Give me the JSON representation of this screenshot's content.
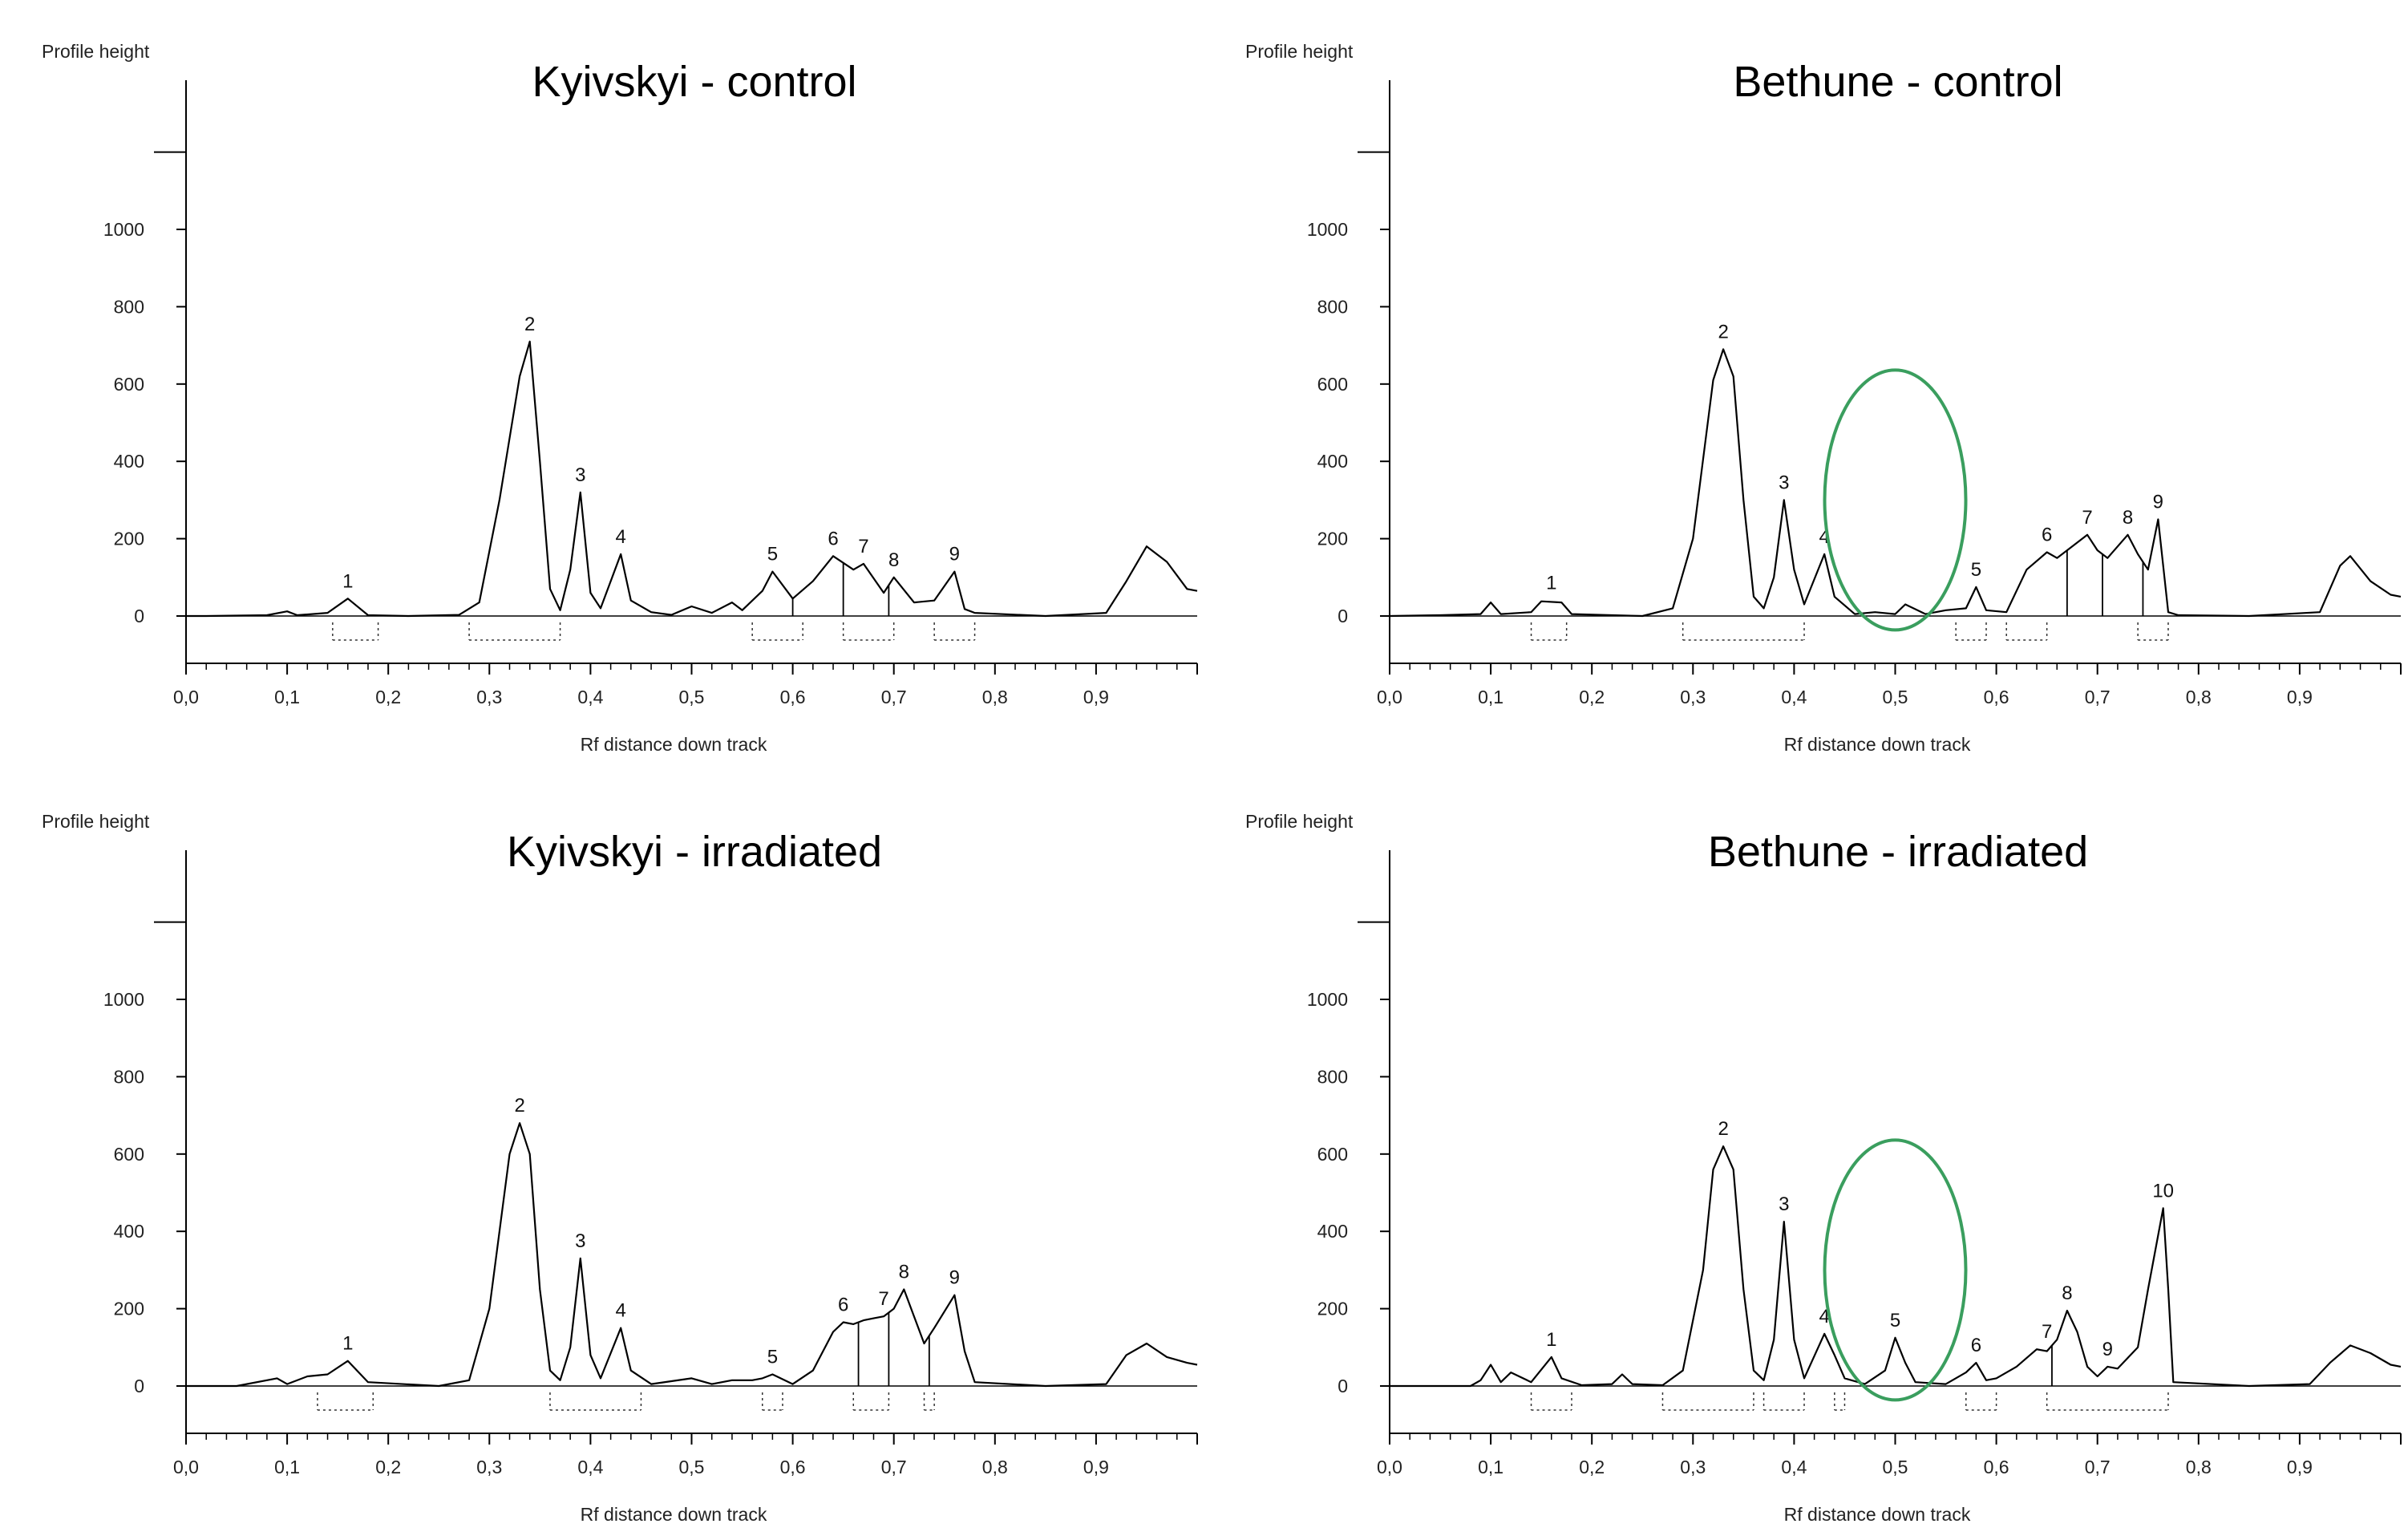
{
  "chart_data": [
    {
      "type": "line",
      "title": "Kyivskyi - control",
      "ylabel": "Profile height",
      "xlabel": "Rf distance down track",
      "ylim": [
        -120,
        1200
      ],
      "xlim": [
        0,
        1
      ],
      "yticks": [
        "0",
        "200",
        "400",
        "600",
        "800",
        "1000"
      ],
      "xticks": [
        "0,0",
        "0,1",
        "0,2",
        "0,3",
        "0,4",
        "0,5",
        "0,6",
        "0,7",
        "0,8",
        "0,9"
      ],
      "peaks": [
        {
          "label": "1",
          "x": 0.16,
          "y": 45
        },
        {
          "label": "2",
          "x": 0.34,
          "y": 710
        },
        {
          "label": "3",
          "x": 0.39,
          "y": 320
        },
        {
          "label": "4",
          "x": 0.43,
          "y": 160
        },
        {
          "label": "5",
          "x": 0.58,
          "y": 115
        },
        {
          "label": "6",
          "x": 0.64,
          "y": 155
        },
        {
          "label": "7",
          "x": 0.67,
          "y": 135
        },
        {
          "label": "8",
          "x": 0.7,
          "y": 100
        },
        {
          "label": "9",
          "x": 0.76,
          "y": 115
        }
      ],
      "profile": [
        [
          0,
          0
        ],
        [
          0.02,
          0
        ],
        [
          0.08,
          2
        ],
        [
          0.1,
          12
        ],
        [
          0.11,
          2
        ],
        [
          0.14,
          8
        ],
        [
          0.16,
          45
        ],
        [
          0.18,
          2
        ],
        [
          0.22,
          0
        ],
        [
          0.27,
          3
        ],
        [
          0.29,
          35
        ],
        [
          0.31,
          300
        ],
        [
          0.33,
          620
        ],
        [
          0.34,
          710
        ],
        [
          0.35,
          400
        ],
        [
          0.36,
          70
        ],
        [
          0.37,
          15
        ],
        [
          0.38,
          120
        ],
        [
          0.39,
          320
        ],
        [
          0.4,
          60
        ],
        [
          0.41,
          20
        ],
        [
          0.43,
          160
        ],
        [
          0.44,
          40
        ],
        [
          0.46,
          10
        ],
        [
          0.48,
          3
        ],
        [
          0.5,
          25
        ],
        [
          0.52,
          8
        ],
        [
          0.54,
          35
        ],
        [
          0.55,
          15
        ],
        [
          0.57,
          65
        ],
        [
          0.58,
          115
        ],
        [
          0.6,
          45
        ],
        [
          0.62,
          90
        ],
        [
          0.64,
          155
        ],
        [
          0.66,
          120
        ],
        [
          0.67,
          135
        ],
        [
          0.69,
          60
        ],
        [
          0.7,
          100
        ],
        [
          0.72,
          35
        ],
        [
          0.74,
          40
        ],
        [
          0.76,
          115
        ],
        [
          0.77,
          18
        ],
        [
          0.78,
          8
        ],
        [
          0.85,
          0
        ],
        [
          0.91,
          8
        ],
        [
          0.93,
          90
        ],
        [
          0.95,
          180
        ],
        [
          0.97,
          140
        ],
        [
          0.99,
          70
        ],
        [
          1.0,
          65
        ]
      ],
      "vlines": [
        0.6,
        0.65,
        0.695
      ],
      "dotted_groups": [
        [
          0.145,
          0.19
        ],
        [
          0.28,
          0.37
        ],
        [
          0.56,
          0.61
        ],
        [
          0.65,
          0.7
        ],
        [
          0.74,
          0.78
        ]
      ]
    },
    {
      "type": "line",
      "title": "Bethune - control",
      "ylabel": "Profile height",
      "xlabel": "Rf distance down track",
      "ylim": [
        -120,
        1200
      ],
      "xlim": [
        0,
        1
      ],
      "yticks": [
        "0",
        "200",
        "400",
        "600",
        "800",
        "1000"
      ],
      "xticks": [
        "0,0",
        "0,1",
        "0,2",
        "0,3",
        "0,4",
        "0,5",
        "0,6",
        "0,7",
        "0,8",
        "0,9"
      ],
      "peaks": [
        {
          "label": "1",
          "x": 0.16,
          "y": 40
        },
        {
          "label": "2",
          "x": 0.33,
          "y": 690
        },
        {
          "label": "3",
          "x": 0.39,
          "y": 300
        },
        {
          "label": "4",
          "x": 0.43,
          "y": 160
        },
        {
          "label": "5",
          "x": 0.58,
          "y": 75
        },
        {
          "label": "6",
          "x": 0.65,
          "y": 165
        },
        {
          "label": "7",
          "x": 0.69,
          "y": 210
        },
        {
          "label": "8",
          "x": 0.73,
          "y": 210
        },
        {
          "label": "9",
          "x": 0.76,
          "y": 250
        }
      ],
      "profile": [
        [
          0,
          0
        ],
        [
          0.05,
          2
        ],
        [
          0.09,
          5
        ],
        [
          0.1,
          35
        ],
        [
          0.11,
          5
        ],
        [
          0.14,
          10
        ],
        [
          0.15,
          38
        ],
        [
          0.17,
          35
        ],
        [
          0.18,
          5
        ],
        [
          0.25,
          0
        ],
        [
          0.28,
          20
        ],
        [
          0.3,
          200
        ],
        [
          0.32,
          610
        ],
        [
          0.33,
          690
        ],
        [
          0.34,
          620
        ],
        [
          0.35,
          300
        ],
        [
          0.36,
          50
        ],
        [
          0.37,
          20
        ],
        [
          0.38,
          100
        ],
        [
          0.39,
          300
        ],
        [
          0.4,
          120
        ],
        [
          0.41,
          30
        ],
        [
          0.43,
          160
        ],
        [
          0.44,
          50
        ],
        [
          0.46,
          5
        ],
        [
          0.48,
          10
        ],
        [
          0.5,
          5
        ],
        [
          0.51,
          30
        ],
        [
          0.53,
          5
        ],
        [
          0.55,
          15
        ],
        [
          0.57,
          20
        ],
        [
          0.58,
          75
        ],
        [
          0.59,
          15
        ],
        [
          0.61,
          10
        ],
        [
          0.63,
          120
        ],
        [
          0.65,
          165
        ],
        [
          0.66,
          150
        ],
        [
          0.67,
          170
        ],
        [
          0.69,
          210
        ],
        [
          0.7,
          170
        ],
        [
          0.71,
          150
        ],
        [
          0.73,
          210
        ],
        [
          0.74,
          160
        ],
        [
          0.75,
          120
        ],
        [
          0.76,
          250
        ],
        [
          0.77,
          10
        ],
        [
          0.78,
          2
        ],
        [
          0.85,
          0
        ],
        [
          0.92,
          10
        ],
        [
          0.94,
          130
        ],
        [
          0.95,
          155
        ],
        [
          0.97,
          90
        ],
        [
          0.99,
          55
        ],
        [
          1.0,
          50
        ]
      ],
      "vlines": [
        0.67,
        0.705,
        0.745
      ],
      "dotted_groups": [
        [
          0.14,
          0.175
        ],
        [
          0.29,
          0.41
        ],
        [
          0.56,
          0.59
        ],
        [
          0.61,
          0.65
        ],
        [
          0.74,
          0.77
        ]
      ]
    },
    {
      "type": "line",
      "title": "Kyivskyi - irradiated",
      "ylabel": "Profile height",
      "xlabel": "Rf distance down track",
      "ylim": [
        -120,
        1200
      ],
      "xlim": [
        0,
        1
      ],
      "yticks": [
        "0",
        "200",
        "400",
        "600",
        "800",
        "1000"
      ],
      "xticks": [
        "0,0",
        "0,1",
        "0,2",
        "0,3",
        "0,4",
        "0,5",
        "0,6",
        "0,7",
        "0,8",
        "0,9"
      ],
      "peaks": [
        {
          "label": "1",
          "x": 0.16,
          "y": 65
        },
        {
          "label": "2",
          "x": 0.33,
          "y": 680
        },
        {
          "label": "3",
          "x": 0.39,
          "y": 330
        },
        {
          "label": "4",
          "x": 0.43,
          "y": 150
        },
        {
          "label": "5",
          "x": 0.58,
          "y": 30
        },
        {
          "label": "6",
          "x": 0.65,
          "y": 165
        },
        {
          "label": "7",
          "x": 0.69,
          "y": 180
        },
        {
          "label": "8",
          "x": 0.71,
          "y": 250
        },
        {
          "label": "9",
          "x": 0.76,
          "y": 235
        }
      ],
      "profile": [
        [
          0,
          0
        ],
        [
          0.05,
          0
        ],
        [
          0.09,
          20
        ],
        [
          0.1,
          5
        ],
        [
          0.12,
          25
        ],
        [
          0.14,
          30
        ],
        [
          0.16,
          65
        ],
        [
          0.18,
          10
        ],
        [
          0.25,
          0
        ],
        [
          0.28,
          15
        ],
        [
          0.3,
          200
        ],
        [
          0.32,
          600
        ],
        [
          0.33,
          680
        ],
        [
          0.34,
          600
        ],
        [
          0.35,
          250
        ],
        [
          0.36,
          40
        ],
        [
          0.37,
          15
        ],
        [
          0.38,
          100
        ],
        [
          0.39,
          330
        ],
        [
          0.4,
          80
        ],
        [
          0.41,
          20
        ],
        [
          0.43,
          150
        ],
        [
          0.44,
          40
        ],
        [
          0.46,
          5
        ],
        [
          0.5,
          20
        ],
        [
          0.52,
          5
        ],
        [
          0.54,
          15
        ],
        [
          0.56,
          15
        ],
        [
          0.57,
          20
        ],
        [
          0.58,
          30
        ],
        [
          0.6,
          5
        ],
        [
          0.62,
          40
        ],
        [
          0.64,
          140
        ],
        [
          0.65,
          165
        ],
        [
          0.66,
          160
        ],
        [
          0.67,
          170
        ],
        [
          0.68,
          175
        ],
        [
          0.69,
          180
        ],
        [
          0.7,
          200
        ],
        [
          0.71,
          250
        ],
        [
          0.72,
          180
        ],
        [
          0.73,
          110
        ],
        [
          0.74,
          150
        ],
        [
          0.76,
          235
        ],
        [
          0.77,
          90
        ],
        [
          0.78,
          10
        ],
        [
          0.85,
          0
        ],
        [
          0.91,
          5
        ],
        [
          0.93,
          80
        ],
        [
          0.95,
          110
        ],
        [
          0.97,
          75
        ],
        [
          0.99,
          60
        ],
        [
          1.0,
          55
        ]
      ],
      "vlines": [
        0.665,
        0.695,
        0.735
      ],
      "dotted_groups": [
        [
          0.13,
          0.185
        ],
        [
          0.36,
          0.45
        ],
        [
          0.57,
          0.59
        ],
        [
          0.66,
          0.695
        ],
        [
          0.73,
          0.74
        ]
      ]
    },
    {
      "type": "line",
      "title": "Bethune - irradiated",
      "ylabel": "Profile height",
      "xlabel": "Rf distance down track",
      "ylim": [
        -120,
        1200
      ],
      "xlim": [
        0,
        1
      ],
      "yticks": [
        "0",
        "200",
        "400",
        "600",
        "800",
        "1000"
      ],
      "xticks": [
        "0,0",
        "0,1",
        "0,2",
        "0,3",
        "0,4",
        "0,5",
        "0,6",
        "0,7",
        "0,8",
        "0,9"
      ],
      "peaks": [
        {
          "label": "1",
          "x": 0.16,
          "y": 75
        },
        {
          "label": "2",
          "x": 0.33,
          "y": 620
        },
        {
          "label": "3",
          "x": 0.39,
          "y": 425
        },
        {
          "label": "4",
          "x": 0.43,
          "y": 135
        },
        {
          "label": "5",
          "x": 0.5,
          "y": 125
        },
        {
          "label": "6",
          "x": 0.58,
          "y": 60
        },
        {
          "label": "7",
          "x": 0.65,
          "y": 95
        },
        {
          "label": "8",
          "x": 0.67,
          "y": 195
        },
        {
          "label": "9",
          "x": 0.71,
          "y": 50
        },
        {
          "label": "10",
          "x": 0.765,
          "y": 460
        }
      ],
      "profile": [
        [
          0,
          0
        ],
        [
          0.08,
          0
        ],
        [
          0.09,
          15
        ],
        [
          0.1,
          55
        ],
        [
          0.11,
          10
        ],
        [
          0.12,
          35
        ],
        [
          0.14,
          10
        ],
        [
          0.16,
          75
        ],
        [
          0.17,
          20
        ],
        [
          0.19,
          2
        ],
        [
          0.22,
          5
        ],
        [
          0.23,
          30
        ],
        [
          0.24,
          5
        ],
        [
          0.27,
          2
        ],
        [
          0.29,
          40
        ],
        [
          0.31,
          300
        ],
        [
          0.32,
          560
        ],
        [
          0.33,
          620
        ],
        [
          0.34,
          560
        ],
        [
          0.35,
          250
        ],
        [
          0.36,
          40
        ],
        [
          0.37,
          15
        ],
        [
          0.38,
          120
        ],
        [
          0.39,
          425
        ],
        [
          0.4,
          120
        ],
        [
          0.41,
          20
        ],
        [
          0.43,
          135
        ],
        [
          0.44,
          80
        ],
        [
          0.45,
          20
        ],
        [
          0.47,
          5
        ],
        [
          0.49,
          40
        ],
        [
          0.5,
          125
        ],
        [
          0.51,
          60
        ],
        [
          0.52,
          10
        ],
        [
          0.55,
          5
        ],
        [
          0.57,
          35
        ],
        [
          0.58,
          60
        ],
        [
          0.59,
          15
        ],
        [
          0.6,
          20
        ],
        [
          0.62,
          50
        ],
        [
          0.64,
          95
        ],
        [
          0.65,
          90
        ],
        [
          0.66,
          120
        ],
        [
          0.67,
          195
        ],
        [
          0.68,
          140
        ],
        [
          0.69,
          50
        ],
        [
          0.7,
          25
        ],
        [
          0.71,
          50
        ],
        [
          0.72,
          45
        ],
        [
          0.74,
          100
        ],
        [
          0.75,
          250
        ],
        [
          0.765,
          460
        ],
        [
          0.77,
          250
        ],
        [
          0.775,
          10
        ],
        [
          0.85,
          0
        ],
        [
          0.91,
          5
        ],
        [
          0.93,
          60
        ],
        [
          0.95,
          105
        ],
        [
          0.97,
          85
        ],
        [
          0.99,
          55
        ],
        [
          1.0,
          50
        ]
      ],
      "vlines": [
        0.655
      ],
      "dotted_groups": [
        [
          0.14,
          0.18
        ],
        [
          0.27,
          0.36
        ],
        [
          0.37,
          0.41
        ],
        [
          0.44,
          0.45
        ],
        [
          0.57,
          0.6
        ],
        [
          0.65,
          0.77
        ]
      ]
    }
  ],
  "annotations": {
    "highlight_color": "#3a9e5e",
    "line_color": "#000000"
  }
}
